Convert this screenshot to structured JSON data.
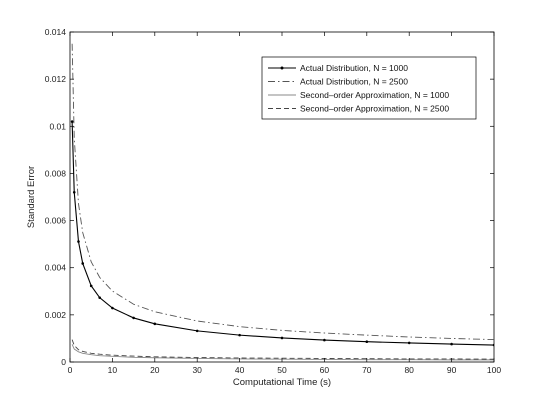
{
  "chart_data": {
    "type": "line",
    "title": "",
    "xlabel": "Computational Time (s)",
    "ylabel": "Standard Error",
    "xlim": [
      0,
      100
    ],
    "ylim": [
      0,
      0.014
    ],
    "xticks": [
      0,
      10,
      20,
      30,
      40,
      50,
      60,
      70,
      80,
      90,
      100
    ],
    "yticks": [
      0,
      0.002,
      0.004,
      0.006,
      0.008,
      0.01,
      0.012,
      0.014
    ],
    "xtick_labels": [
      "0",
      "10",
      "20",
      "30",
      "40",
      "50",
      "60",
      "70",
      "80",
      "90",
      "100"
    ],
    "ytick_labels": [
      "0",
      "0.002",
      "0.004",
      "0.006",
      "0.008",
      "0.01",
      "0.012",
      "0.014"
    ],
    "grid": false,
    "legend_position": "top-right",
    "series": [
      {
        "name": "Actual Distribution, N = 1000",
        "style": "solid-dots",
        "color": "#000000",
        "x": [
          0.5,
          1,
          2,
          3,
          5,
          7,
          10,
          15,
          20,
          30,
          40,
          50,
          60,
          70,
          80,
          90,
          100
        ],
        "y": [
          0.0102,
          0.0072,
          0.00511,
          0.00418,
          0.00323,
          0.00273,
          0.00229,
          0.00187,
          0.00162,
          0.00132,
          0.00114,
          0.00102,
          0.00093,
          0.00086,
          0.00081,
          0.00076,
          0.00072
        ]
      },
      {
        "name": "Actual Distribution, N = 2500",
        "style": "dashdot",
        "color": "#555555",
        "x": [
          0.5,
          1,
          2,
          3,
          5,
          7,
          10,
          15,
          20,
          30,
          40,
          50,
          60,
          70,
          80,
          90,
          100
        ],
        "y": [
          0.0135,
          0.0095,
          0.00672,
          0.00549,
          0.00425,
          0.00359,
          0.00301,
          0.00245,
          0.00213,
          0.00174,
          0.0015,
          0.00134,
          0.00123,
          0.00114,
          0.00106,
          0.001,
          0.00095
        ]
      },
      {
        "name": "Second–order Approximation, N = 1000",
        "style": "solid",
        "color": "#888888",
        "x": [
          0.5,
          1,
          2,
          3,
          5,
          7,
          10,
          15,
          20,
          30,
          40,
          50,
          60,
          70,
          80,
          90,
          100
        ],
        "y": [
          0.00075,
          0.00055,
          0.00043,
          0.00037,
          0.00031,
          0.00027,
          0.00024,
          0.0002,
          0.00018,
          0.00015,
          0.00013,
          0.00012,
          0.00011,
          0.0001,
          0.0001,
          9e-05,
          9e-05
        ]
      },
      {
        "name": "Second–order Approximation, N = 2500",
        "style": "dashed",
        "color": "#444444",
        "x": [
          0.5,
          1,
          2,
          3,
          5,
          7,
          10,
          15,
          20,
          30,
          40,
          50,
          60,
          70,
          80,
          90,
          100
        ],
        "y": [
          0.00095,
          0.0007,
          0.00052,
          0.00045,
          0.00037,
          0.00033,
          0.00029,
          0.00025,
          0.00022,
          0.00019,
          0.00017,
          0.00016,
          0.00015,
          0.00014,
          0.00013,
          0.00013,
          0.00012
        ]
      }
    ]
  }
}
